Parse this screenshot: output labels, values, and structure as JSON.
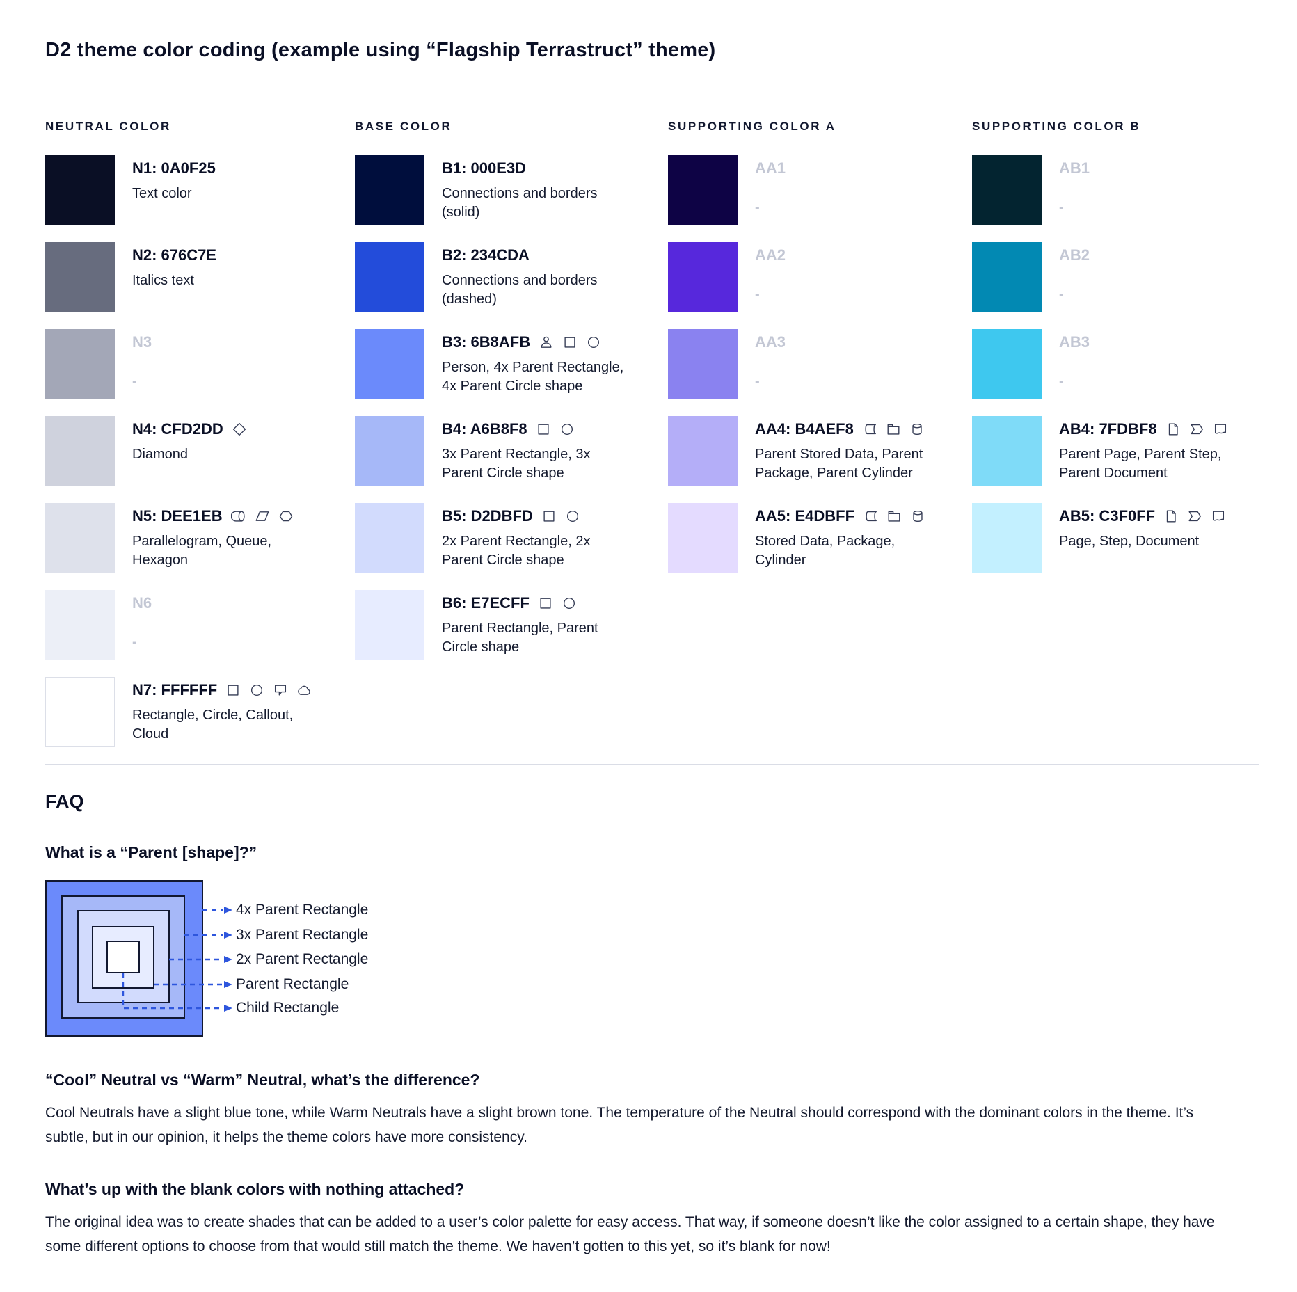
{
  "page": {
    "title": "D2 theme color coding (example using “Flagship Terrastruct” theme)"
  },
  "columns": [
    {
      "header": "NEUTRAL COLOR",
      "entries": [
        {
          "title": "N1: 0A0F25",
          "color": "#0A0F25",
          "desc": "Text color",
          "icons": []
        },
        {
          "title": "N2: 676C7E",
          "color": "#676C7E",
          "desc": "Italics text",
          "icons": []
        },
        {
          "title": "N3",
          "color": "#A3A7B7",
          "desc": "-",
          "blank": true,
          "icons": []
        },
        {
          "title": "N4: CFD2DD",
          "color": "#CFD2DD",
          "desc": "Diamond",
          "icons": [
            "diamond"
          ]
        },
        {
          "title": "N5: DEE1EB",
          "color": "#DEE1EB",
          "desc": "Parallelogram, Queue, Hexagon",
          "icons": [
            "queue",
            "parallelogram",
            "hexagon"
          ]
        },
        {
          "title": "N6",
          "color": "#ECEFF7",
          "desc": "-",
          "blank": true,
          "icons": []
        },
        {
          "title": "N7: FFFFFF",
          "color": "#FFFFFF",
          "border": true,
          "desc": "Rectangle, Circle, Callout, Cloud",
          "icons": [
            "rectangle",
            "circle",
            "callout",
            "cloud"
          ]
        }
      ]
    },
    {
      "header": "BASE COLOR",
      "entries": [
        {
          "title": "B1: 000E3D",
          "color": "#000E3D",
          "desc": "Connections and borders (solid)",
          "icons": []
        },
        {
          "title": "B2: 234CDA",
          "color": "#234CDA",
          "desc": "Connections and borders (dashed)",
          "icons": []
        },
        {
          "title": "B3: 6B8AFB",
          "color": "#6B8AFB",
          "desc": "Person, 4x Parent Rectangle, 4x Parent Circle shape",
          "icons": [
            "person",
            "rectangle",
            "circle"
          ]
        },
        {
          "title": "B4: A6B8F8",
          "color": "#A6B8F8",
          "desc": "3x Parent Rectangle, 3x Parent Circle shape",
          "icons": [
            "rectangle",
            "circle"
          ]
        },
        {
          "title": "B5: D2DBFD",
          "color": "#D2DBFD",
          "desc": "2x Parent Rectangle, 2x Parent Circle shape",
          "icons": [
            "rectangle",
            "circle"
          ]
        },
        {
          "title": "B6: E7ECFF",
          "color": "#E7ECFF",
          "desc": "Parent Rectangle, Parent Circle shape",
          "icons": [
            "rectangle",
            "circle"
          ]
        }
      ]
    },
    {
      "header": "SUPPORTING COLOR A",
      "entries": [
        {
          "title": "AA1",
          "color": "#0E0345",
          "desc": "-",
          "blank": true,
          "icons": []
        },
        {
          "title": "AA2",
          "color": "#5728DC",
          "desc": "-",
          "blank": true,
          "icons": []
        },
        {
          "title": "AA3",
          "color": "#8A82F0",
          "desc": "-",
          "blank": true,
          "icons": []
        },
        {
          "title": "AA4: B4AEF8",
          "color": "#B4AEF8",
          "desc": "Parent Stored Data, Parent Package, Parent Cylinder",
          "icons": [
            "stored-data",
            "package",
            "cylinder"
          ]
        },
        {
          "title": "AA5: E4DBFF",
          "color": "#E4DBFF",
          "desc": "Stored Data, Package, Cylinder",
          "icons": [
            "stored-data",
            "package",
            "cylinder"
          ]
        }
      ]
    },
    {
      "header": "SUPPORTING COLOR B",
      "entries": [
        {
          "title": "AB1",
          "color": "#032430",
          "desc": "-",
          "blank": true,
          "icons": []
        },
        {
          "title": "AB2",
          "color": "#0289B3",
          "desc": "-",
          "blank": true,
          "icons": []
        },
        {
          "title": "AB3",
          "color": "#3EC8EF",
          "desc": "-",
          "blank": true,
          "icons": []
        },
        {
          "title": "AB4: 7FDBF8",
          "color": "#7FDBF8",
          "desc": "Parent Page, Parent Step, Parent Document",
          "icons": [
            "page",
            "step",
            "document"
          ]
        },
        {
          "title": "AB5: C3F0FF",
          "color": "#C3F0FF",
          "desc": "Page, Step, Document",
          "icons": [
            "page",
            "step",
            "document"
          ]
        }
      ]
    }
  ],
  "faq": {
    "heading": "FAQ",
    "q1": "What is a “Parent [shape]?”",
    "diagram": {
      "labels": [
        "4x Parent Rectangle",
        "3x Parent Rectangle",
        "2x Parent Rectangle",
        "Parent Rectangle",
        "Child Rectangle"
      ],
      "fills": [
        "#6B8AFB",
        "#A6B8F8",
        "#D2DBFD",
        "#E7ECFF",
        "#FFFFFF"
      ],
      "border_color": "#121830",
      "line_color": "#2E56DD"
    },
    "q2": "“Cool” Neutral vs “Warm” Neutral, what’s the difference?",
    "a2": "Cool Neutrals have a slight blue tone, while Warm Neutrals have a slight brown tone. The temperature of the Neutral should correspond with the dominant colors in the theme. It’s subtle, but in our opinion, it helps the theme colors have more consistency.",
    "q3": "What’s up with the blank colors with nothing attached?",
    "a3": "The original idea was to create shades that can be added to a user’s color palette for easy access. That way, if someone doesn’t like the color assigned to a certain shape, they have some different options to choose from that would still match the theme. We haven’t gotten to this yet, so it’s blank for now!"
  }
}
